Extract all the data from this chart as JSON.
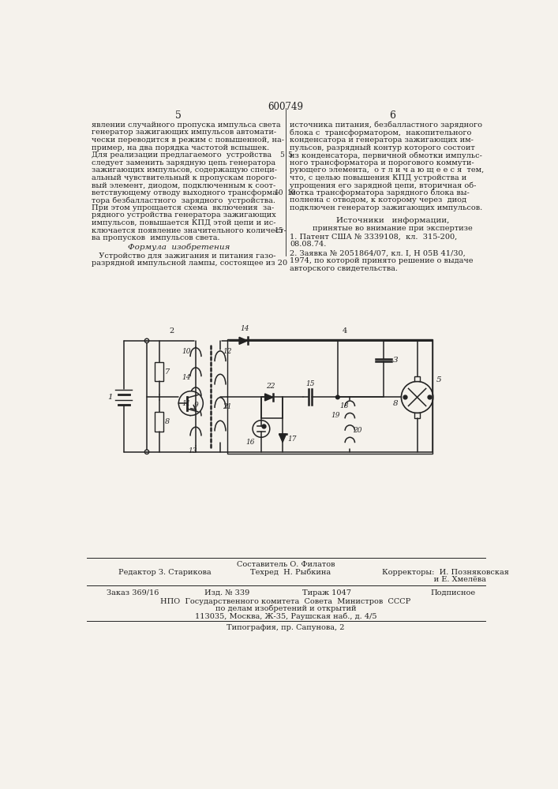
{
  "page_title": "600749",
  "col_left_number": "5",
  "col_right_number": "6",
  "left_text_lines": [
    "явлении случайного пропуска импульса света",
    "генератор зажигающих импульсов автомати-",
    "чески переводится в режим с повышенной, на-",
    "пример, на два порядка частотой вспышек.",
    "Для реализации предлагаемого  устройства",
    "следует заменить зарядную цепь генератора",
    "зажигающих импульсов, содержащую специ-",
    "альный чувствительный к пропускам порого-",
    "вый элемент, диодом, подключенным к соот-",
    "ветствующему отводу выходного трансформа-",
    "тора безбалластного  зарядного  устройства.",
    "При этом упрощается схема  включения  за-",
    "рядного устройства генератора зажигающих",
    "импульсов, повышается КПД этой цепи и ис-",
    "ключается появление значительного количест-",
    "ва пропусков  импульсов света."
  ],
  "formula_header": "Формула  изобретения",
  "formula_lines": [
    "   Устройство для зажигания и питания газо-",
    "разрядной импульсной лампы, состоящее из 20"
  ],
  "right_text_lines": [
    "источника питания, безбалластного зарядного",
    "блока с  трансформатором,  накопительного",
    "конденсатора и генератора зажигающих им-",
    "пульсов, разрядный контур которого состоит",
    "из конденсатора, первичной обмотки импульс-",
    "ного трансформатора и порогового коммути-",
    "рующего элемента,  о т л и ч а ю щ е е с я  тем,",
    "что, с целью повышения КПД устройства и",
    "упрощения его зарядной цепи, вторичная об-",
    "мотка трансформатора зарядного блока вы-",
    "полнена с отводом, к которому через  диод",
    "подключен генератор зажигающих импульсов."
  ],
  "sources_header": "Источники   информации,",
  "sources_subheader": "принятые во внимание при экспертизе",
  "source1_lines": [
    "1. Патент США № 3339108,  кл.  315-200,",
    "08.08.74."
  ],
  "source2_lines": [
    "2. Заявка № 2051864/07, кл. I, Н 05В 41/30,",
    "1974, по которой принято решение о выдаче",
    "авторского свидетельства."
  ],
  "line_numbers_left": [
    "5",
    "10",
    "15"
  ],
  "line_numbers_right": [
    "5",
    "10"
  ],
  "footer_sestavitel": "Составитель О. Филатов",
  "footer_redaktor": "Редактор З. Старикова",
  "footer_tehred": "Техред  Н. Рыбкина",
  "footer_korr": "Корректоры:  И. Позняковская",
  "footer_korr2": "                     и Е. Хмелёва",
  "footer_zakaz": "Заказ 369/16",
  "footer_izd": "Изд. № 339",
  "footer_tirazh": "Тираж 1047",
  "footer_podpisnoe": "Подписное",
  "footer_npo1": "НПО  Государственного комитета  Совета  Министров  СССР",
  "footer_npo2": "по делам изобретений и открытий",
  "footer_npo3": "113035, Москва, Ж-35, Раушская наб., д. 4/5",
  "footer_tipografia": "Типография, пр. Сапунова, 2",
  "bg_color": "#f5f2ec",
  "text_color": "#222222"
}
